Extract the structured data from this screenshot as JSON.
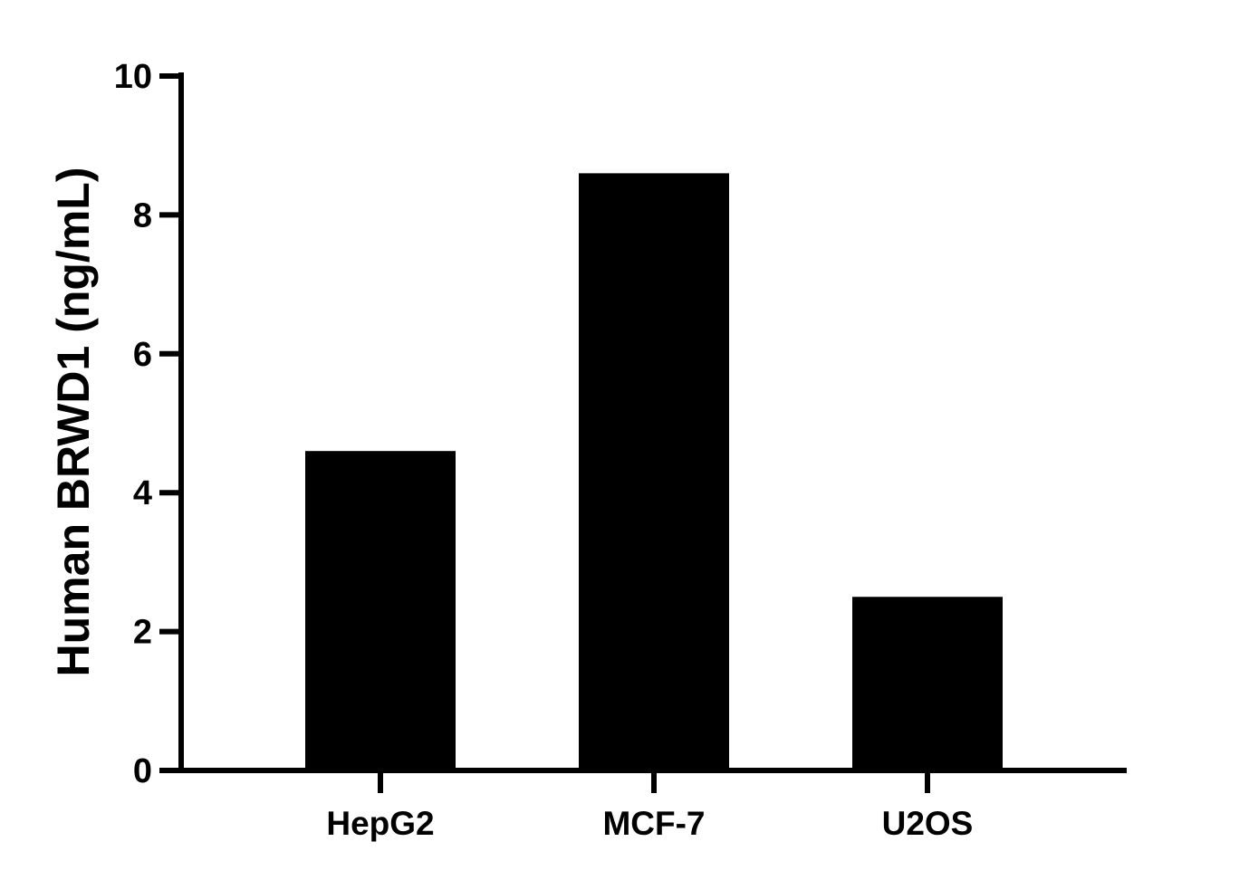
{
  "chart_data": {
    "type": "bar",
    "title": "",
    "xlabel": "",
    "ylabel": "Human BRWD1 (ng/mL)",
    "categories": [
      "HepG2",
      "MCF-7",
      "U2OS"
    ],
    "values": [
      4.6,
      8.6,
      2.5
    ],
    "ylim": [
      0,
      10
    ],
    "yticks": [
      0,
      2,
      4,
      6,
      8,
      10
    ],
    "grid": false,
    "bar_color": "#000000"
  }
}
